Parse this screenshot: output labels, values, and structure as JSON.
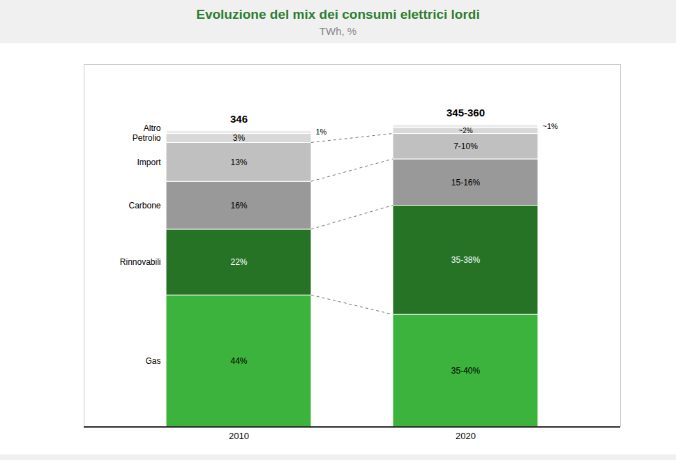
{
  "chart_data": {
    "type": "bar",
    "title": "Evoluzione del mix dei consumi elettrici lordi",
    "subtitle": "TWh, %",
    "categories": [
      "2010",
      "2020"
    ],
    "series": [
      {
        "name": "Gas",
        "color": "#3cb33c",
        "values": [
          44,
          37.5
        ],
        "value_labels": [
          "44%",
          "35-40%"
        ]
      },
      {
        "name": "Rinnovabili",
        "color": "#267326",
        "values": [
          22,
          36.5
        ],
        "value_labels": [
          "22%",
          "35-38%"
        ]
      },
      {
        "name": "Carbone",
        "color": "#999999",
        "values": [
          16,
          15.5
        ],
        "value_labels": [
          "16%",
          "15-16%"
        ]
      },
      {
        "name": "Import",
        "color": "#c0c0c0",
        "values": [
          13,
          8.5
        ],
        "value_labels": [
          "13%",
          "7-10%"
        ]
      },
      {
        "name": "Petrolio",
        "color": "#d8d8d8",
        "values": [
          3,
          2
        ],
        "value_labels": [
          "3%",
          "~2%"
        ]
      },
      {
        "name": "Altro",
        "color": "#ebebeb",
        "values": [
          1,
          1
        ],
        "value_labels": [
          "1%",
          "~1%"
        ]
      }
    ],
    "stacked": true,
    "data_labels": true,
    "annotations": [
      "346",
      "345-360"
    ],
    "ylim": [
      0,
      121.2
    ],
    "tick_labels": "x"
  }
}
